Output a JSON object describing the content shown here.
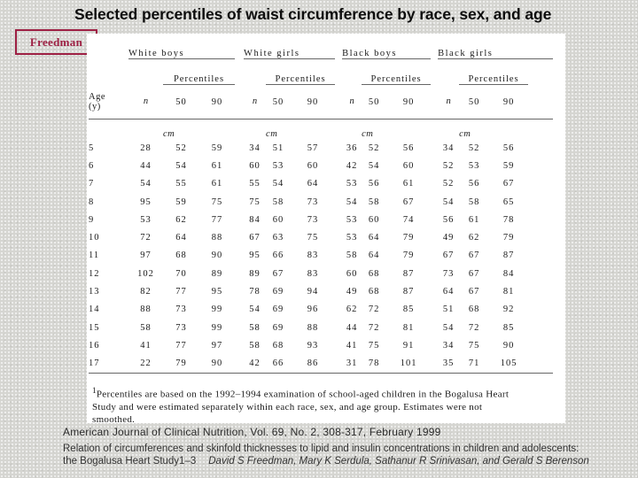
{
  "title": "Selected percentiles of waist circumference by race, sex, and age",
  "author_label": "Freedman",
  "colors": {
    "accent_maroon": "#9e2044",
    "background_gray": "#d5d5d1",
    "table_rule_gray": "#666666"
  },
  "table": {
    "groups": [
      "White boys",
      "White girls",
      "Black boys",
      "Black girls"
    ],
    "percentiles_label": "Percentiles",
    "age_label_line1": "Age",
    "age_label_line2": "(y)",
    "n_label": "n",
    "percentile_headers": [
      "50",
      "90"
    ],
    "unit_label": "cm",
    "rows": [
      {
        "age": "5",
        "values": [
          [
            28,
            52,
            59
          ],
          [
            34,
            51,
            57
          ],
          [
            36,
            52,
            56
          ],
          [
            34,
            52,
            56
          ]
        ]
      },
      {
        "age": "6",
        "values": [
          [
            44,
            54,
            61
          ],
          [
            60,
            53,
            60
          ],
          [
            42,
            54,
            60
          ],
          [
            52,
            53,
            59
          ]
        ]
      },
      {
        "age": "7",
        "values": [
          [
            54,
            55,
            61
          ],
          [
            55,
            54,
            64
          ],
          [
            53,
            56,
            61
          ],
          [
            52,
            56,
            67
          ]
        ]
      },
      {
        "age": "8",
        "values": [
          [
            95,
            59,
            75
          ],
          [
            75,
            58,
            73
          ],
          [
            54,
            58,
            67
          ],
          [
            54,
            58,
            65
          ]
        ]
      },
      {
        "age": "9",
        "values": [
          [
            53,
            62,
            77
          ],
          [
            84,
            60,
            73
          ],
          [
            53,
            60,
            74
          ],
          [
            56,
            61,
            78
          ]
        ]
      },
      {
        "age": "10",
        "values": [
          [
            72,
            64,
            88
          ],
          [
            67,
            63,
            75
          ],
          [
            53,
            64,
            79
          ],
          [
            49,
            62,
            79
          ]
        ]
      },
      {
        "age": "11",
        "values": [
          [
            97,
            68,
            90
          ],
          [
            95,
            66,
            83
          ],
          [
            58,
            64,
            79
          ],
          [
            67,
            67,
            87
          ]
        ]
      },
      {
        "age": "12",
        "values": [
          [
            102,
            70,
            89
          ],
          [
            89,
            67,
            83
          ],
          [
            60,
            68,
            87
          ],
          [
            73,
            67,
            84
          ]
        ]
      },
      {
        "age": "13",
        "values": [
          [
            82,
            77,
            95
          ],
          [
            78,
            69,
            94
          ],
          [
            49,
            68,
            87
          ],
          [
            64,
            67,
            81
          ]
        ]
      },
      {
        "age": "14",
        "values": [
          [
            88,
            73,
            99
          ],
          [
            54,
            69,
            96
          ],
          [
            62,
            72,
            85
          ],
          [
            51,
            68,
            92
          ]
        ]
      },
      {
        "age": "15",
        "values": [
          [
            58,
            73,
            99
          ],
          [
            58,
            69,
            88
          ],
          [
            44,
            72,
            81
          ],
          [
            54,
            72,
            85
          ]
        ]
      },
      {
        "age": "16",
        "values": [
          [
            41,
            77,
            97
          ],
          [
            58,
            68,
            93
          ],
          [
            41,
            75,
            91
          ],
          [
            34,
            75,
            90
          ]
        ]
      },
      {
        "age": "17",
        "values": [
          [
            22,
            79,
            90
          ],
          [
            42,
            66,
            86
          ],
          [
            31,
            78,
            101
          ],
          [
            35,
            71,
            105
          ]
        ]
      }
    ],
    "footnote_marker": "1",
    "footnote": "Percentiles are based on the 1992–1994 examination of school-aged children in the Bogalusa Heart Study and were estimated separately within each race, sex, and age group. Estimates were not smoothed."
  },
  "citation": {
    "journal_line": "American Journal of Clinical Nutrition, Vol. 69, No. 2, 308-317, February 1999",
    "article_line1": "Relation of circumferences and skinfold thicknesses to lipid and insulin concentrations in children and adolescents:",
    "article_line2": "the Bogalusa Heart Study1–3",
    "authors": "David S Freedman, Mary K Serdula, Sathanur R Srinivasan, and Gerald S Berenson"
  }
}
